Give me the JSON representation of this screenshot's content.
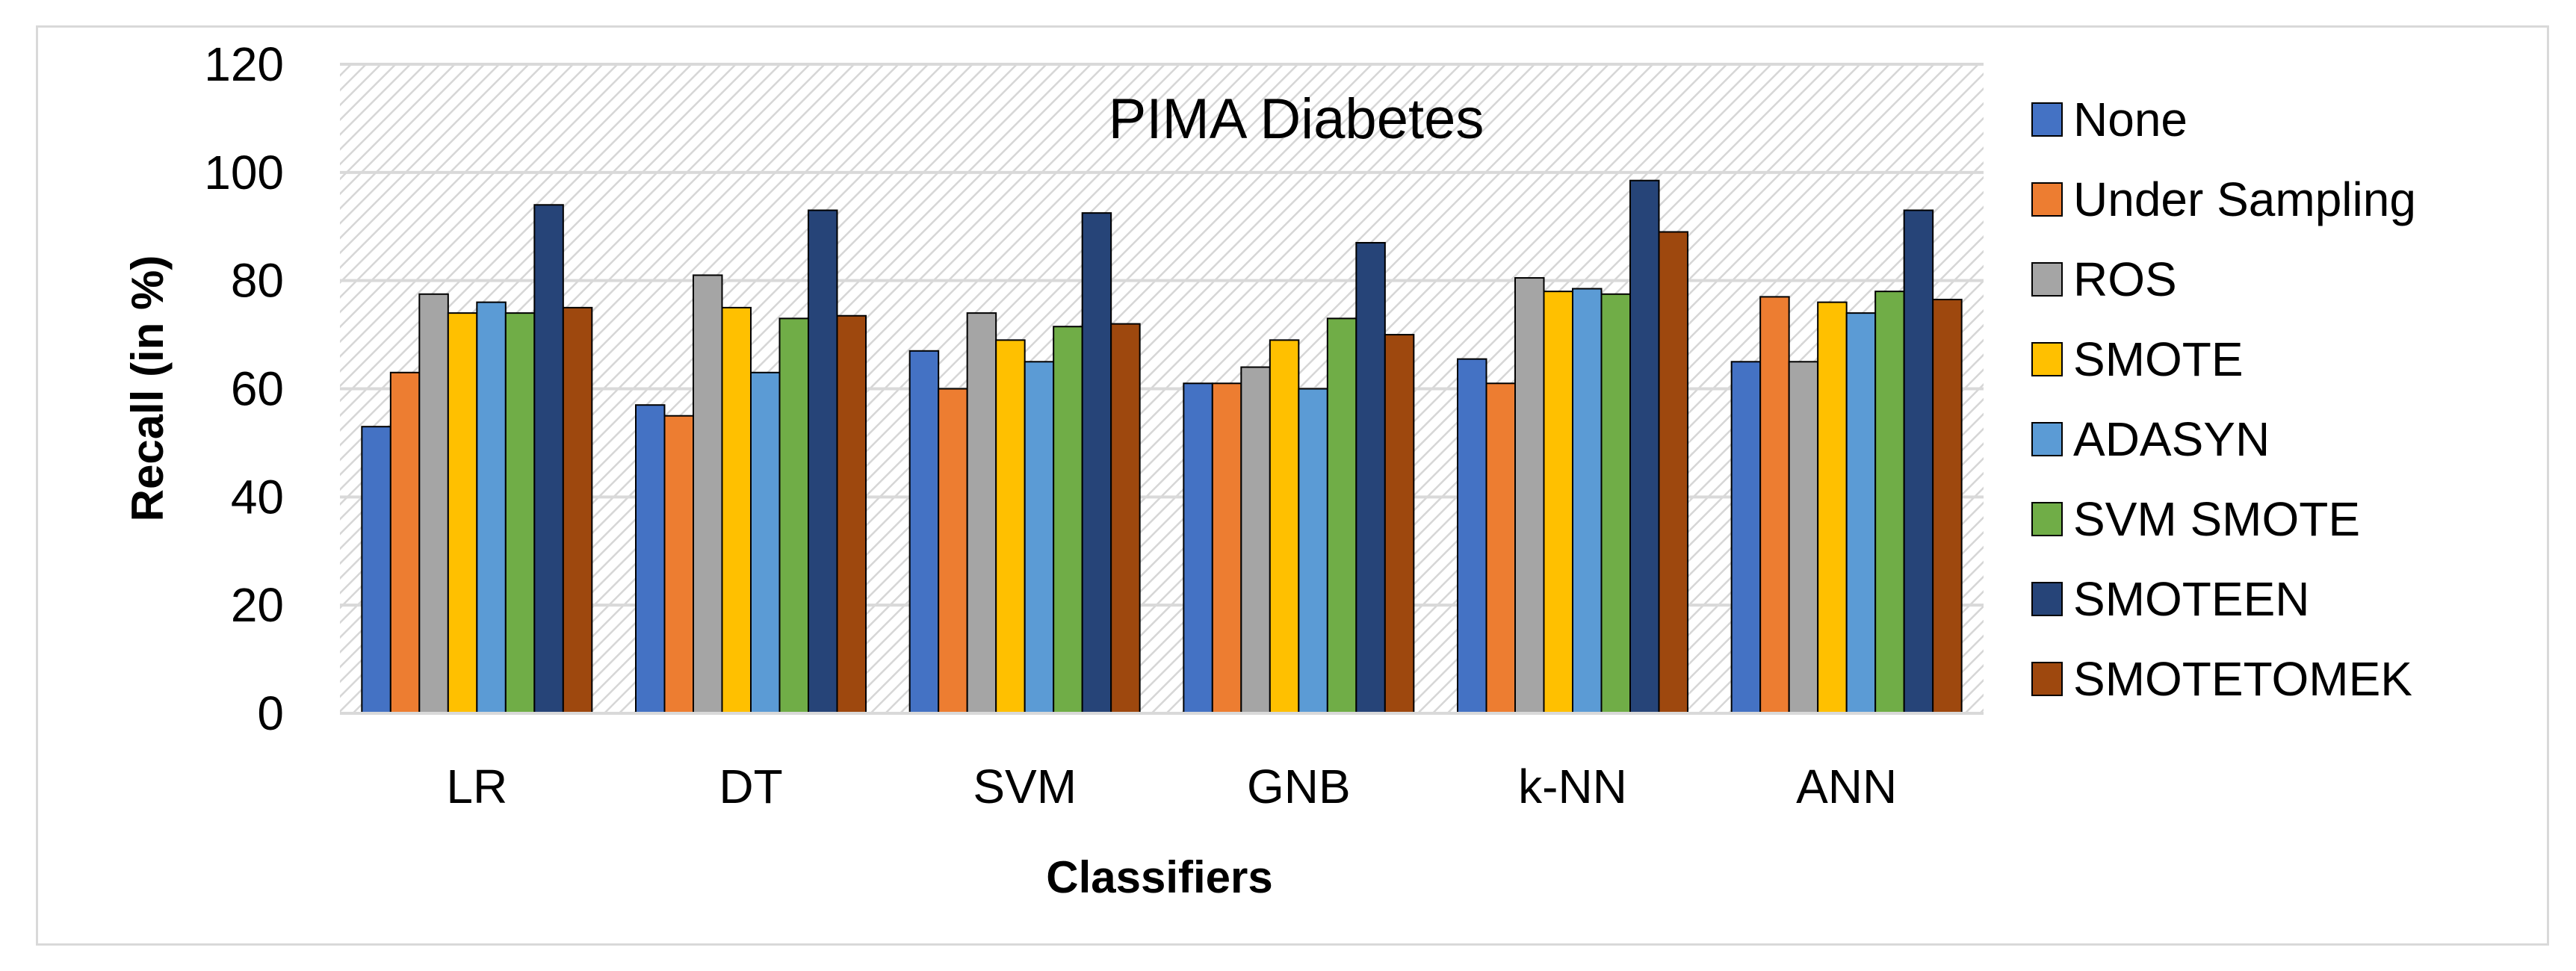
{
  "chart_data": {
    "type": "bar",
    "title": "PIMA Diabetes",
    "xlabel": "Classifiers",
    "ylabel": "Recall (in %)",
    "ylim": [
      0,
      120
    ],
    "yticks": [
      0,
      20,
      40,
      60,
      80,
      100,
      120
    ],
    "grid": true,
    "legend_position": "right",
    "categories": [
      "LR",
      "DT",
      "SVM",
      "GNB",
      "k-NN",
      "ANN"
    ],
    "series": [
      {
        "name": "None",
        "color": "#4472C4",
        "values": [
          53,
          57,
          67,
          61,
          65.5,
          65
        ]
      },
      {
        "name": "Under Sampling",
        "color": "#ED7D31",
        "values": [
          63,
          55,
          60,
          61,
          61,
          77
        ]
      },
      {
        "name": "ROS",
        "color": "#A5A5A5",
        "values": [
          77.5,
          81,
          74,
          64,
          80.5,
          65
        ]
      },
      {
        "name": "SMOTE",
        "color": "#FFC000",
        "values": [
          74,
          75,
          69,
          69,
          78,
          76
        ]
      },
      {
        "name": "ADASYN",
        "color": "#5B9BD5",
        "values": [
          76,
          63,
          65,
          60,
          78.5,
          74
        ]
      },
      {
        "name": "SVM SMOTE",
        "color": "#70AD47",
        "values": [
          74,
          73,
          71.5,
          73,
          77.5,
          78
        ]
      },
      {
        "name": "SMOTEEN",
        "color": "#264478",
        "values": [
          94,
          93,
          92.5,
          87,
          98.5,
          93
        ]
      },
      {
        "name": "SMOTETOMEK",
        "color": "#9E480E",
        "values": [
          75,
          73.5,
          72,
          70,
          89,
          76.5
        ]
      }
    ]
  }
}
